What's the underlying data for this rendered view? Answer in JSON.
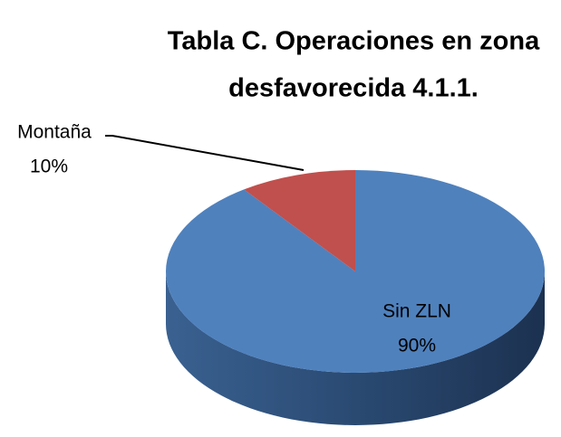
{
  "chart_data": {
    "type": "pie",
    "title": [
      "Tabla C. Operaciones en zona",
      "desfavorecida 4.1.1."
    ],
    "categories": [
      "Sin ZLN",
      "Montaña"
    ],
    "values": [
      90,
      10
    ],
    "value_labels": [
      "90%",
      "10%"
    ],
    "colors": [
      "#4f81bd",
      "#c0504d"
    ],
    "three_d": true
  }
}
